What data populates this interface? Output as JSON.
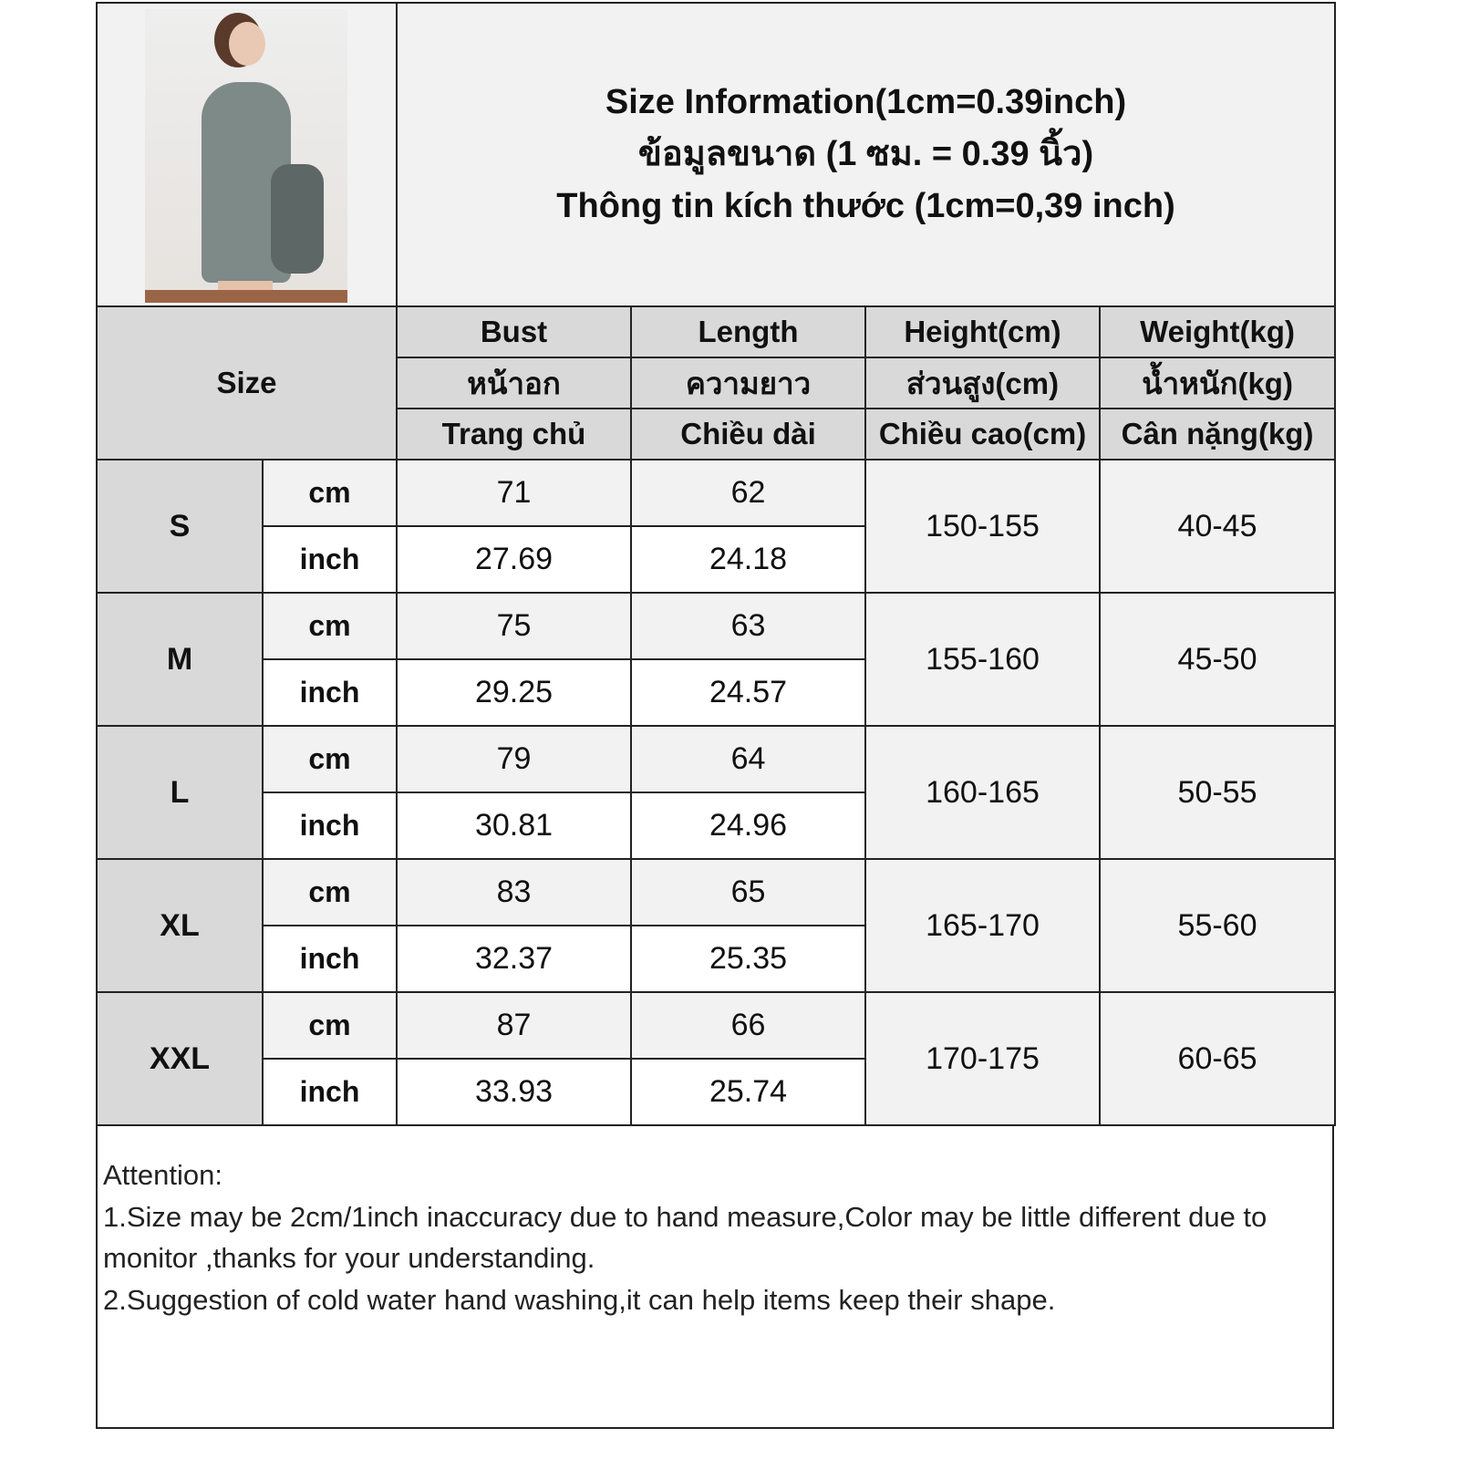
{
  "title_lines": [
    "Size Information(1cm=0.39inch)",
    "ข้อมูลขนาด (1 ซม. = 0.39 นิ้ว)",
    "Thông tin kích thước (1cm=0,39 inch)"
  ],
  "header": {
    "size_label": "Size",
    "columns": [
      {
        "en": "Bust",
        "th": "หน้าอก",
        "vi": "Trang chủ"
      },
      {
        "en": "Length",
        "th": "ความยาว",
        "vi": "Chiều dài"
      },
      {
        "en": "Height(cm)",
        "th": "ส่วนสูง(cm)",
        "vi": "Chiều cao(cm)"
      },
      {
        "en": "Weight(kg)",
        "th": "น้ำหนัก(kg)",
        "vi": "Cân nặng(kg)"
      }
    ]
  },
  "units": {
    "cm": "cm",
    "inch": "inch"
  },
  "rows": [
    {
      "size": "S",
      "bust_cm": "71",
      "length_cm": "62",
      "bust_in": "27.69",
      "length_in": "24.18",
      "height": "150-155",
      "weight": "40-45"
    },
    {
      "size": "M",
      "bust_cm": "75",
      "length_cm": "63",
      "bust_in": "29.25",
      "length_in": "24.57",
      "height": "155-160",
      "weight": "45-50"
    },
    {
      "size": "L",
      "bust_cm": "79",
      "length_cm": "64",
      "bust_in": "30.81",
      "length_in": "24.96",
      "height": "160-165",
      "weight": "50-55"
    },
    {
      "size": "XL",
      "bust_cm": "83",
      "length_cm": "65",
      "bust_in": "32.37",
      "length_in": "25.35",
      "height": "165-170",
      "weight": "55-60"
    },
    {
      "size": "XXL",
      "bust_cm": "87",
      "length_cm": "66",
      "bust_in": "33.93",
      "length_in": "25.74",
      "height": "170-175",
      "weight": "60-65"
    }
  ],
  "notes": [
    "Attention:",
    "1.Size may be 2cm/1inch inaccuracy due to hand measure,Color may be little different due to monitor ,thanks for your understanding.",
    "2.Suggestion of cold water hand washing,it can help items keep their shape."
  ],
  "colors": {
    "header_gray": "#d9d9d9",
    "light_gray": "#f2f2f2",
    "border": "#222222"
  }
}
